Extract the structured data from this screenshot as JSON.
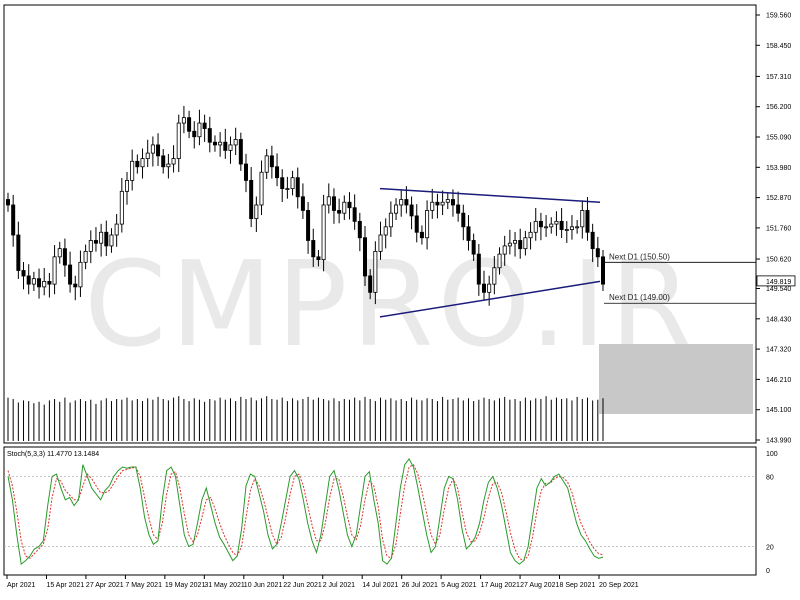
{
  "watermark": "CMPRO.IR",
  "chart_data": {
    "type": "candlestick",
    "price_axis": {
      "ticks": [
        "159.560",
        "158.450",
        "157.310",
        "156.200",
        "155.090",
        "153.980",
        "152.870",
        "151.760",
        "150.620",
        "149.540",
        "148.430",
        "147.320",
        "146.210",
        "145.100",
        "143.990"
      ],
      "values": [
        159.56,
        158.45,
        157.31,
        156.2,
        155.09,
        153.98,
        152.87,
        151.76,
        150.62,
        149.54,
        148.43,
        147.32,
        146.21,
        145.1,
        143.99
      ],
      "range": [
        143.99,
        159.56
      ]
    },
    "current_price": {
      "value": 149.819,
      "label": "149.819"
    },
    "levels": [
      {
        "label": "Next D1 (150.50)",
        "value": 150.5
      },
      {
        "label": "Next D1 (149.00)",
        "value": 149.0
      }
    ],
    "triangle": {
      "upper": [
        {
          "date_index": 0,
          "price": 153.2
        },
        {
          "date_index": 1,
          "price": 152.7
        }
      ],
      "lower": [
        {
          "date_index": 0,
          "price": 148.5
        },
        {
          "date_index": 1,
          "price": 149.8
        }
      ]
    },
    "x_axis": {
      "labels": [
        "Apr 2021",
        "15 Apr 2021",
        "27 Apr 2021",
        "7 May 2021",
        "19 May 2021",
        "31 May 2021",
        "10 Jun 2021",
        "22 Jun 2021",
        "2 Jul 2021",
        "14 Jul 2021",
        "26 Jul 2021",
        "5 Aug 2021",
        "17 Aug 2021",
        "27 Aug 2021",
        "8 Sep 2021",
        "20 Sep 2021"
      ]
    },
    "candles_close": [
      152.6,
      151.5,
      150.2,
      150.0,
      149.7,
      149.9,
      149.6,
      149.8,
      149.7,
      150.7,
      151.0,
      150.4,
      149.7,
      149.6,
      150.5,
      150.9,
      151.3,
      151.2,
      151.6,
      151.1,
      151.5,
      151.9,
      153.1,
      153.5,
      154.2,
      154.0,
      154.3,
      154.5,
      154.8,
      154.4,
      154.0,
      154.1,
      154.3,
      155.6,
      155.8,
      155.3,
      155.1,
      155.6,
      155.4,
      154.9,
      154.8,
      154.9,
      154.6,
      154.8,
      155.0,
      154.1,
      153.5,
      152.1,
      152.6,
      153.8,
      154.4,
      154.0,
      153.6,
      153.2,
      153.2,
      153.6,
      152.9,
      152.4,
      151.3,
      150.7,
      150.6,
      152.6,
      152.9,
      152.4,
      152.3,
      152.7,
      152.5,
      152.0,
      151.4,
      150.0,
      149.4,
      150.9,
      151.5,
      151.8,
      152.3,
      152.6,
      152.8,
      152.6,
      152.2,
      151.6,
      151.4,
      152.4,
      152.7,
      152.6,
      152.7,
      152.8,
      152.6,
      152.3,
      151.8,
      151.3,
      150.8,
      149.7,
      149.4,
      149.7,
      150.3,
      150.8,
      151.1,
      151.2,
      151.3,
      151.0,
      151.4,
      151.6,
      152.0,
      151.8,
      151.8,
      151.9,
      152.0,
      151.7,
      151.7,
      151.8,
      151.8,
      152.4,
      151.6,
      151.0,
      150.7,
      149.7
    ],
    "volume": [
      62,
      60,
      55,
      58,
      57,
      54,
      56,
      52,
      58,
      60,
      56,
      62,
      55,
      58,
      60,
      57,
      59,
      53,
      58,
      61,
      57,
      60,
      59,
      62,
      58,
      60,
      57,
      61,
      59,
      63,
      60,
      58,
      62,
      64,
      60,
      57,
      61,
      59,
      56,
      60,
      58,
      62,
      59,
      61,
      57,
      63,
      60,
      62,
      58,
      61,
      64,
      60,
      59,
      62,
      57,
      61,
      58,
      60,
      63,
      59,
      62,
      60,
      58,
      61,
      57,
      60,
      59,
      62,
      58,
      63,
      60,
      57,
      62,
      59,
      61,
      58,
      60,
      57,
      62,
      59,
      58,
      61,
      60,
      57,
      63,
      59,
      60,
      62,
      58,
      61,
      57,
      59,
      62,
      60,
      58,
      61,
      63,
      59,
      60,
      57,
      62,
      58,
      61,
      60,
      64,
      59,
      62,
      60,
      61,
      58,
      63,
      60,
      62,
      58,
      59,
      61
    ],
    "stochastic": {
      "label": "Stoch(5,3,3) 11.4770 13.1484",
      "levels": [
        20,
        80
      ],
      "ticks": [
        "100",
        "80",
        "20",
        "0"
      ],
      "range": [
        0,
        100
      ],
      "main": [
        80,
        60,
        30,
        5,
        8,
        12,
        18,
        20,
        25,
        55,
        80,
        82,
        70,
        60,
        62,
        55,
        60,
        90,
        80,
        70,
        65,
        60,
        68,
        72,
        80,
        85,
        88,
        87,
        88,
        88,
        70,
        45,
        30,
        22,
        25,
        60,
        85,
        88,
        80,
        55,
        30,
        20,
        22,
        40,
        60,
        70,
        55,
        40,
        28,
        22,
        15,
        8,
        12,
        35,
        72,
        82,
        80,
        65,
        50,
        30,
        18,
        22,
        40,
        60,
        80,
        85,
        78,
        60,
        40,
        25,
        15,
        30,
        55,
        80,
        85,
        70,
        50,
        30,
        20,
        30,
        55,
        80,
        84,
        60,
        40,
        8,
        5,
        10,
        40,
        70,
        90,
        95,
        88,
        70,
        50,
        30,
        15,
        20,
        45,
        70,
        80,
        78,
        60,
        35,
        18,
        22,
        28,
        40,
        60,
        75,
        80,
        70,
        55,
        35,
        15,
        8,
        5,
        8,
        20,
        45,
        70,
        78,
        72,
        75,
        80,
        82,
        76,
        70,
        55,
        40,
        30,
        25,
        18,
        12,
        10,
        11
      ],
      "signal": [
        85,
        72,
        50,
        25,
        12,
        10,
        14,
        18,
        22,
        35,
        62,
        78,
        76,
        68,
        64,
        60,
        60,
        72,
        82,
        78,
        72,
        66,
        66,
        68,
        74,
        80,
        85,
        86,
        87,
        88,
        80,
        62,
        44,
        30,
        26,
        40,
        65,
        82,
        84,
        70,
        48,
        30,
        24,
        30,
        45,
        60,
        62,
        52,
        40,
        30,
        22,
        15,
        12,
        20,
        45,
        68,
        78,
        72,
        60,
        45,
        30,
        22,
        28,
        45,
        65,
        80,
        82,
        72,
        55,
        38,
        25,
        25,
        40,
        62,
        78,
        78,
        64,
        46,
        30,
        26,
        38,
        60,
        76,
        72,
        54,
        26,
        12,
        10,
        22,
        48,
        72,
        88,
        90,
        82,
        66,
        48,
        30,
        22,
        30,
        52,
        70,
        78,
        70,
        50,
        32,
        24,
        25,
        32,
        45,
        62,
        74,
        75,
        66,
        50,
        32,
        18,
        10,
        8,
        12,
        28,
        50,
        68,
        74,
        74,
        78,
        80,
        79,
        75,
        66,
        52,
        40,
        32,
        24,
        18,
        14,
        13
      ]
    }
  }
}
